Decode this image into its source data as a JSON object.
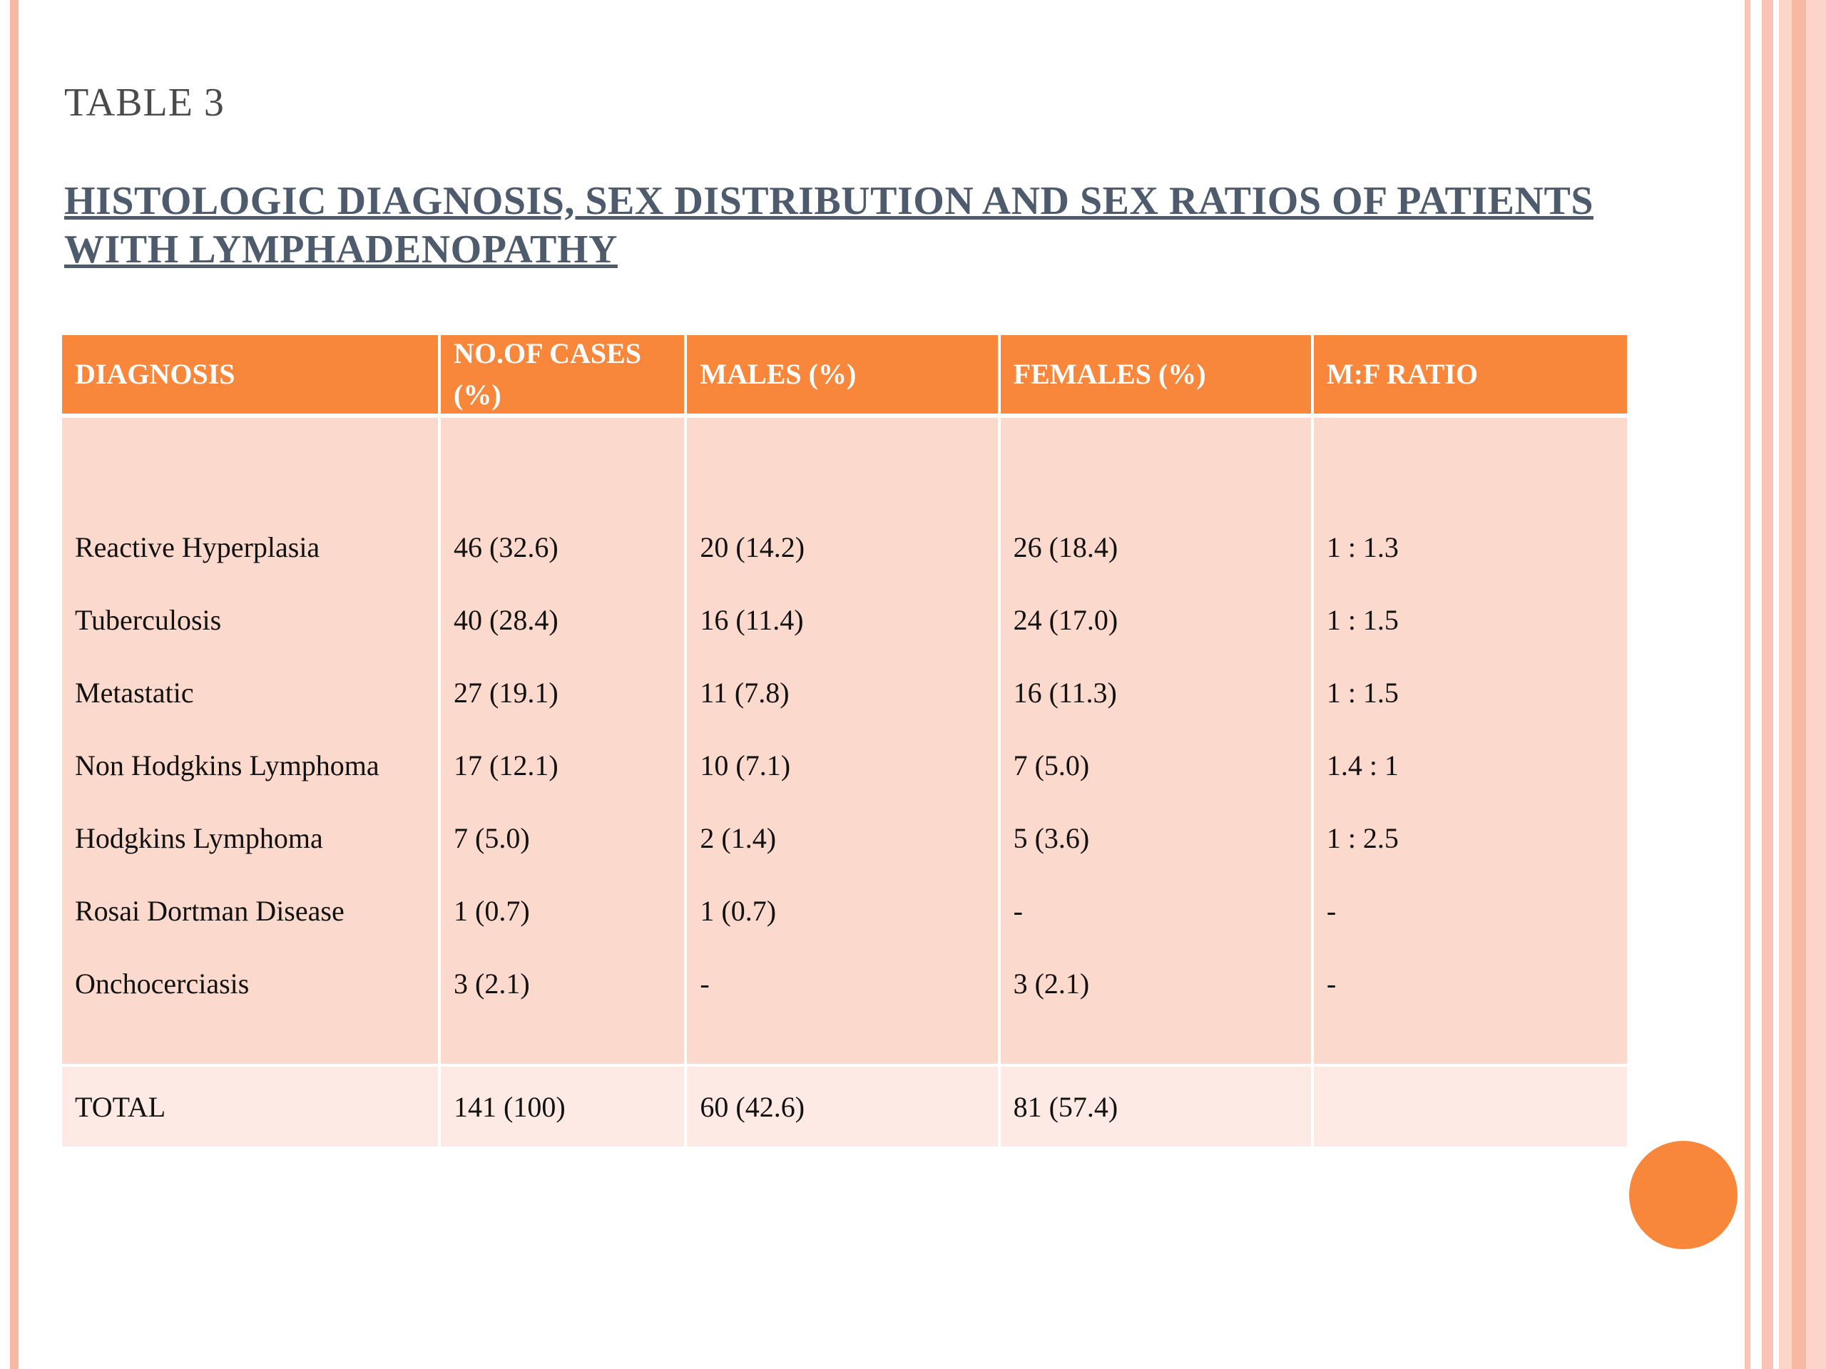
{
  "slide": {
    "label": "TABLE 3",
    "title": " HISTOLOGIC DIAGNOSIS, SEX DISTRIBUTION AND SEX RATIOS OF PATIENTS WITH LYMPHADENOPATHY"
  },
  "table": {
    "headers": [
      "DIAGNOSIS",
      "NO.OF CASES (%)",
      "MALES (%)",
      "FEMALES (%)",
      "M:F RATIO"
    ],
    "rows": [
      [
        "Reactive Hyperplasia",
        "46 (32.6)",
        "20 (14.2)",
        "26 (18.4)",
        "1 : 1.3"
      ],
      [
        "Tuberculosis",
        "40 (28.4)",
        "16 (11.4)",
        "24 (17.0)",
        "1 : 1.5"
      ],
      [
        "Metastatic",
        "27 (19.1)",
        "11 (7.8)",
        "16 (11.3)",
        "1 : 1.5"
      ],
      [
        "Non Hodgkins Lymphoma",
        "17 (12.1)",
        "10 (7.1)",
        "7 (5.0)",
        "1.4 : 1"
      ],
      [
        "Hodgkins Lymphoma",
        "7 (5.0)",
        "2 (1.4)",
        "5 (3.6)",
        "1 : 2.5"
      ],
      [
        "Rosai Dortman Disease",
        "1 (0.7)",
        "1 (0.7)",
        "-",
        "-"
      ],
      [
        "Onchocerciasis",
        "3 (2.1)",
        "-",
        "3 (2.1)",
        "-"
      ]
    ],
    "total": [
      "TOTAL",
      "141 (100)",
      "60 (42.6)",
      "81 (57.4)",
      ""
    ]
  },
  "colors": {
    "accent": "#f8863b",
    "body_fill": "#fcd9cd",
    "total_fill": "#fdeae4",
    "title": "#4d5b6d"
  }
}
